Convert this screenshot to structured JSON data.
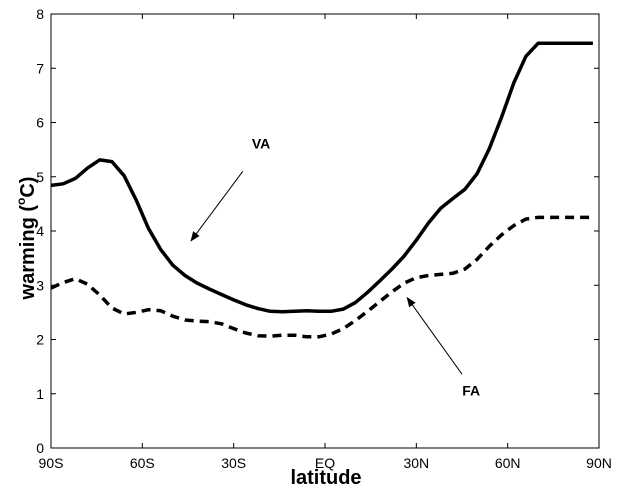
{
  "chart_data": {
    "type": "line",
    "title": "",
    "xlabel": "latitude",
    "ylabel_main": "warming (",
    "ylabel_degree": "o",
    "ylabel_unit": "C)",
    "xlim": [
      -90,
      90
    ],
    "ylim": [
      0,
      8
    ],
    "grid": false,
    "x_ticks": [
      {
        "value": -90,
        "label": "90S"
      },
      {
        "value": -60,
        "label": "60S"
      },
      {
        "value": -30,
        "label": "30S"
      },
      {
        "value": 0,
        "label": "EQ"
      },
      {
        "value": 30,
        "label": "30N"
      },
      {
        "value": 60,
        "label": "60N"
      },
      {
        "value": 90,
        "label": "90N"
      }
    ],
    "y_ticks": [
      0,
      1,
      2,
      3,
      4,
      5,
      6,
      7,
      8
    ],
    "series": [
      {
        "name": "VA",
        "style": "solid",
        "color": "#000000",
        "x": [
          -90,
          -86,
          -82,
          -78,
          -74,
          -70,
          -66,
          -62,
          -58,
          -54,
          -50,
          -46,
          -42,
          -38,
          -34,
          -30,
          -26,
          -22,
          -18,
          -14,
          -10,
          -6,
          -2,
          2,
          6,
          10,
          14,
          18,
          22,
          26,
          30,
          34,
          38,
          42,
          46,
          50,
          54,
          58,
          62,
          66,
          70,
          74,
          78,
          82,
          86,
          88
        ],
        "values": [
          4.84,
          4.87,
          4.97,
          5.16,
          5.31,
          5.28,
          5.02,
          4.57,
          4.05,
          3.66,
          3.37,
          3.18,
          3.04,
          2.93,
          2.83,
          2.73,
          2.64,
          2.57,
          2.52,
          2.51,
          2.52,
          2.53,
          2.52,
          2.52,
          2.56,
          2.68,
          2.87,
          3.08,
          3.3,
          3.54,
          3.83,
          4.15,
          4.42,
          4.6,
          4.77,
          5.06,
          5.52,
          6.1,
          6.73,
          7.22,
          7.46,
          7.46,
          7.46,
          7.46,
          7.46,
          7.46
        ]
      },
      {
        "name": "FA",
        "style": "dashed",
        "color": "#000000",
        "x": [
          -90,
          -86,
          -82,
          -78,
          -74,
          -70,
          -66,
          -62,
          -58,
          -54,
          -50,
          -46,
          -42,
          -38,
          -34,
          -30,
          -26,
          -22,
          -18,
          -14,
          -10,
          -6,
          -2,
          2,
          6,
          10,
          14,
          18,
          22,
          26,
          30,
          34,
          38,
          42,
          46,
          50,
          54,
          58,
          62,
          66,
          70,
          74,
          78,
          82,
          86,
          88
        ],
        "values": [
          2.95,
          3.05,
          3.12,
          3.02,
          2.82,
          2.58,
          2.47,
          2.5,
          2.55,
          2.53,
          2.43,
          2.36,
          2.34,
          2.33,
          2.29,
          2.2,
          2.12,
          2.07,
          2.06,
          2.08,
          2.08,
          2.05,
          2.05,
          2.1,
          2.2,
          2.35,
          2.52,
          2.7,
          2.88,
          3.04,
          3.14,
          3.18,
          3.2,
          3.22,
          3.3,
          3.48,
          3.72,
          3.93,
          4.1,
          4.22,
          4.25,
          4.25,
          4.25,
          4.25,
          4.25,
          4.25
        ]
      }
    ],
    "annotations": [
      {
        "text": "VA",
        "text_at": [
          -21,
          5.52
        ],
        "arrow_from": [
          -27,
          5.1
        ],
        "arrow_to": [
          -44,
          3.82
        ]
      },
      {
        "text": "FA",
        "text_at": [
          48,
          0.97
        ],
        "arrow_from": [
          45,
          1.36
        ],
        "arrow_to": [
          27,
          2.77
        ]
      }
    ]
  }
}
